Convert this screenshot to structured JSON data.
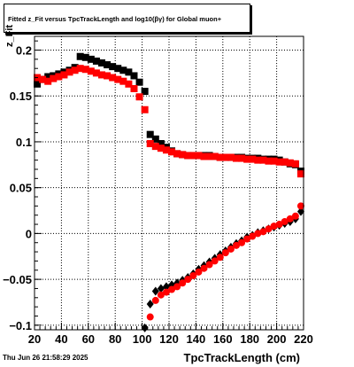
{
  "title": "Fitted z_Fit versus TpcTrackLength and log10(βγ) for Global muon+",
  "timestamp": "Thu Jun 26 21:58:29 2025",
  "chart_data": {
    "type": "scatter",
    "xlabel": "TpcTrackLength (cm)",
    "ylabel": "z_Fit",
    "xlim": [
      20,
      220
    ],
    "ylim": [
      -0.105,
      0.215
    ],
    "xticks": [
      20,
      40,
      60,
      80,
      100,
      120,
      140,
      160,
      180,
      200,
      220
    ],
    "yticks": [
      -0.1,
      -0.05,
      0,
      0.05,
      0.1,
      0.15,
      0.2
    ],
    "ytick_labels": [
      "−0.1",
      "−0.05",
      "0",
      "0.05",
      "0.1",
      "0.15",
      "0.2"
    ],
    "grid": true,
    "colors": {
      "black_series": "#000000",
      "red_series": "#ff0000"
    },
    "series": [
      {
        "color": "black",
        "marker": "square",
        "points": [
          [
            22,
            0.163
          ],
          [
            26,
            0.168
          ],
          [
            30,
            0.171
          ],
          [
            34,
            0.172
          ],
          [
            38,
            0.174
          ],
          [
            42,
            0.176
          ],
          [
            46,
            0.178
          ],
          [
            50,
            0.181
          ],
          [
            54,
            0.193
          ],
          [
            58,
            0.192
          ],
          [
            62,
            0.19
          ],
          [
            66,
            0.188
          ],
          [
            70,
            0.186
          ],
          [
            74,
            0.184
          ],
          [
            78,
            0.182
          ],
          [
            82,
            0.18
          ],
          [
            86,
            0.178
          ],
          [
            90,
            0.176
          ],
          [
            94,
            0.172
          ],
          [
            98,
            0.165
          ],
          [
            102,
            0.155
          ],
          [
            106,
            0.108
          ],
          [
            110,
            0.103
          ],
          [
            114,
            0.098
          ],
          [
            118,
            0.094
          ],
          [
            122,
            0.09
          ],
          [
            126,
            0.087
          ],
          [
            130,
            0.086
          ],
          [
            134,
            0.085
          ],
          [
            138,
            0.085
          ],
          [
            142,
            0.085
          ],
          [
            146,
            0.085
          ],
          [
            150,
            0.085
          ],
          [
            154,
            0.084
          ],
          [
            158,
            0.083
          ],
          [
            162,
            0.083
          ],
          [
            166,
            0.083
          ],
          [
            170,
            0.083
          ],
          [
            174,
            0.083
          ],
          [
            178,
            0.082
          ],
          [
            182,
            0.082
          ],
          [
            186,
            0.082
          ],
          [
            190,
            0.081
          ],
          [
            194,
            0.081
          ],
          [
            198,
            0.081
          ],
          [
            202,
            0.08
          ],
          [
            206,
            0.078
          ],
          [
            210,
            0.076
          ],
          [
            214,
            0.075
          ],
          [
            218,
            0.068
          ]
        ]
      },
      {
        "color": "red",
        "marker": "square",
        "points": [
          [
            22,
            0.17
          ],
          [
            26,
            0.168
          ],
          [
            30,
            0.166
          ],
          [
            34,
            0.169
          ],
          [
            38,
            0.171
          ],
          [
            42,
            0.173
          ],
          [
            46,
            0.176
          ],
          [
            50,
            0.178
          ],
          [
            54,
            0.18
          ],
          [
            58,
            0.179
          ],
          [
            62,
            0.177
          ],
          [
            66,
            0.175
          ],
          [
            70,
            0.173
          ],
          [
            74,
            0.172
          ],
          [
            78,
            0.17
          ],
          [
            82,
            0.168
          ],
          [
            86,
            0.166
          ],
          [
            90,
            0.163
          ],
          [
            94,
            0.158
          ],
          [
            98,
            0.149
          ],
          [
            102,
            0.135
          ],
          [
            106,
            0.098
          ],
          [
            110,
            0.095
          ],
          [
            114,
            0.093
          ],
          [
            118,
            0.091
          ],
          [
            122,
            0.089
          ],
          [
            126,
            0.087
          ],
          [
            130,
            0.086
          ],
          [
            134,
            0.085
          ],
          [
            138,
            0.085
          ],
          [
            142,
            0.085
          ],
          [
            146,
            0.084
          ],
          [
            150,
            0.084
          ],
          [
            154,
            0.084
          ],
          [
            158,
            0.083
          ],
          [
            162,
            0.083
          ],
          [
            166,
            0.083
          ],
          [
            170,
            0.082
          ],
          [
            174,
            0.082
          ],
          [
            178,
            0.081
          ],
          [
            182,
            0.081
          ],
          [
            186,
            0.08
          ],
          [
            190,
            0.08
          ],
          [
            194,
            0.079
          ],
          [
            198,
            0.079
          ],
          [
            202,
            0.078
          ],
          [
            206,
            0.078
          ],
          [
            210,
            0.077
          ],
          [
            214,
            0.076
          ],
          [
            218,
            0.065
          ]
        ]
      },
      {
        "color": "black",
        "marker": "diamond",
        "points": [
          [
            102,
            -0.103
          ],
          [
            106,
            -0.077
          ],
          [
            110,
            -0.063
          ],
          [
            114,
            -0.06
          ],
          [
            118,
            -0.058
          ],
          [
            122,
            -0.056
          ],
          [
            126,
            -0.054
          ],
          [
            130,
            -0.051
          ],
          [
            134,
            -0.048
          ],
          [
            138,
            -0.044
          ],
          [
            142,
            -0.039
          ],
          [
            146,
            -0.035
          ],
          [
            150,
            -0.031
          ],
          [
            154,
            -0.027
          ],
          [
            158,
            -0.023
          ],
          [
            162,
            -0.019
          ],
          [
            166,
            -0.015
          ],
          [
            170,
            -0.011
          ],
          [
            174,
            -0.008
          ],
          [
            178,
            -0.004
          ],
          [
            182,
            -0.002
          ],
          [
            186,
            0.001
          ],
          [
            190,
            0.003
          ],
          [
            194,
            0.005
          ],
          [
            198,
            0.007
          ],
          [
            202,
            0.009
          ],
          [
            206,
            0.011
          ],
          [
            210,
            0.013
          ],
          [
            214,
            0.016
          ],
          [
            218,
            0.024
          ]
        ]
      },
      {
        "color": "red",
        "marker": "circle",
        "points": [
          [
            106,
            -0.091
          ],
          [
            110,
            -0.073
          ],
          [
            114,
            -0.067
          ],
          [
            118,
            -0.064
          ],
          [
            122,
            -0.061
          ],
          [
            126,
            -0.058
          ],
          [
            130,
            -0.054
          ],
          [
            134,
            -0.05
          ],
          [
            138,
            -0.046
          ],
          [
            142,
            -0.042
          ],
          [
            146,
            -0.038
          ],
          [
            150,
            -0.034
          ],
          [
            154,
            -0.03
          ],
          [
            158,
            -0.026
          ],
          [
            162,
            -0.021
          ],
          [
            166,
            -0.017
          ],
          [
            170,
            -0.013
          ],
          [
            174,
            -0.01
          ],
          [
            178,
            -0.006
          ],
          [
            182,
            -0.003
          ],
          [
            186,
            0.0
          ],
          [
            190,
            0.002
          ],
          [
            194,
            0.005
          ],
          [
            198,
            0.008
          ],
          [
            202,
            0.01
          ],
          [
            206,
            0.013
          ],
          [
            210,
            0.016
          ],
          [
            214,
            0.019
          ],
          [
            218,
            0.03
          ]
        ]
      }
    ]
  }
}
